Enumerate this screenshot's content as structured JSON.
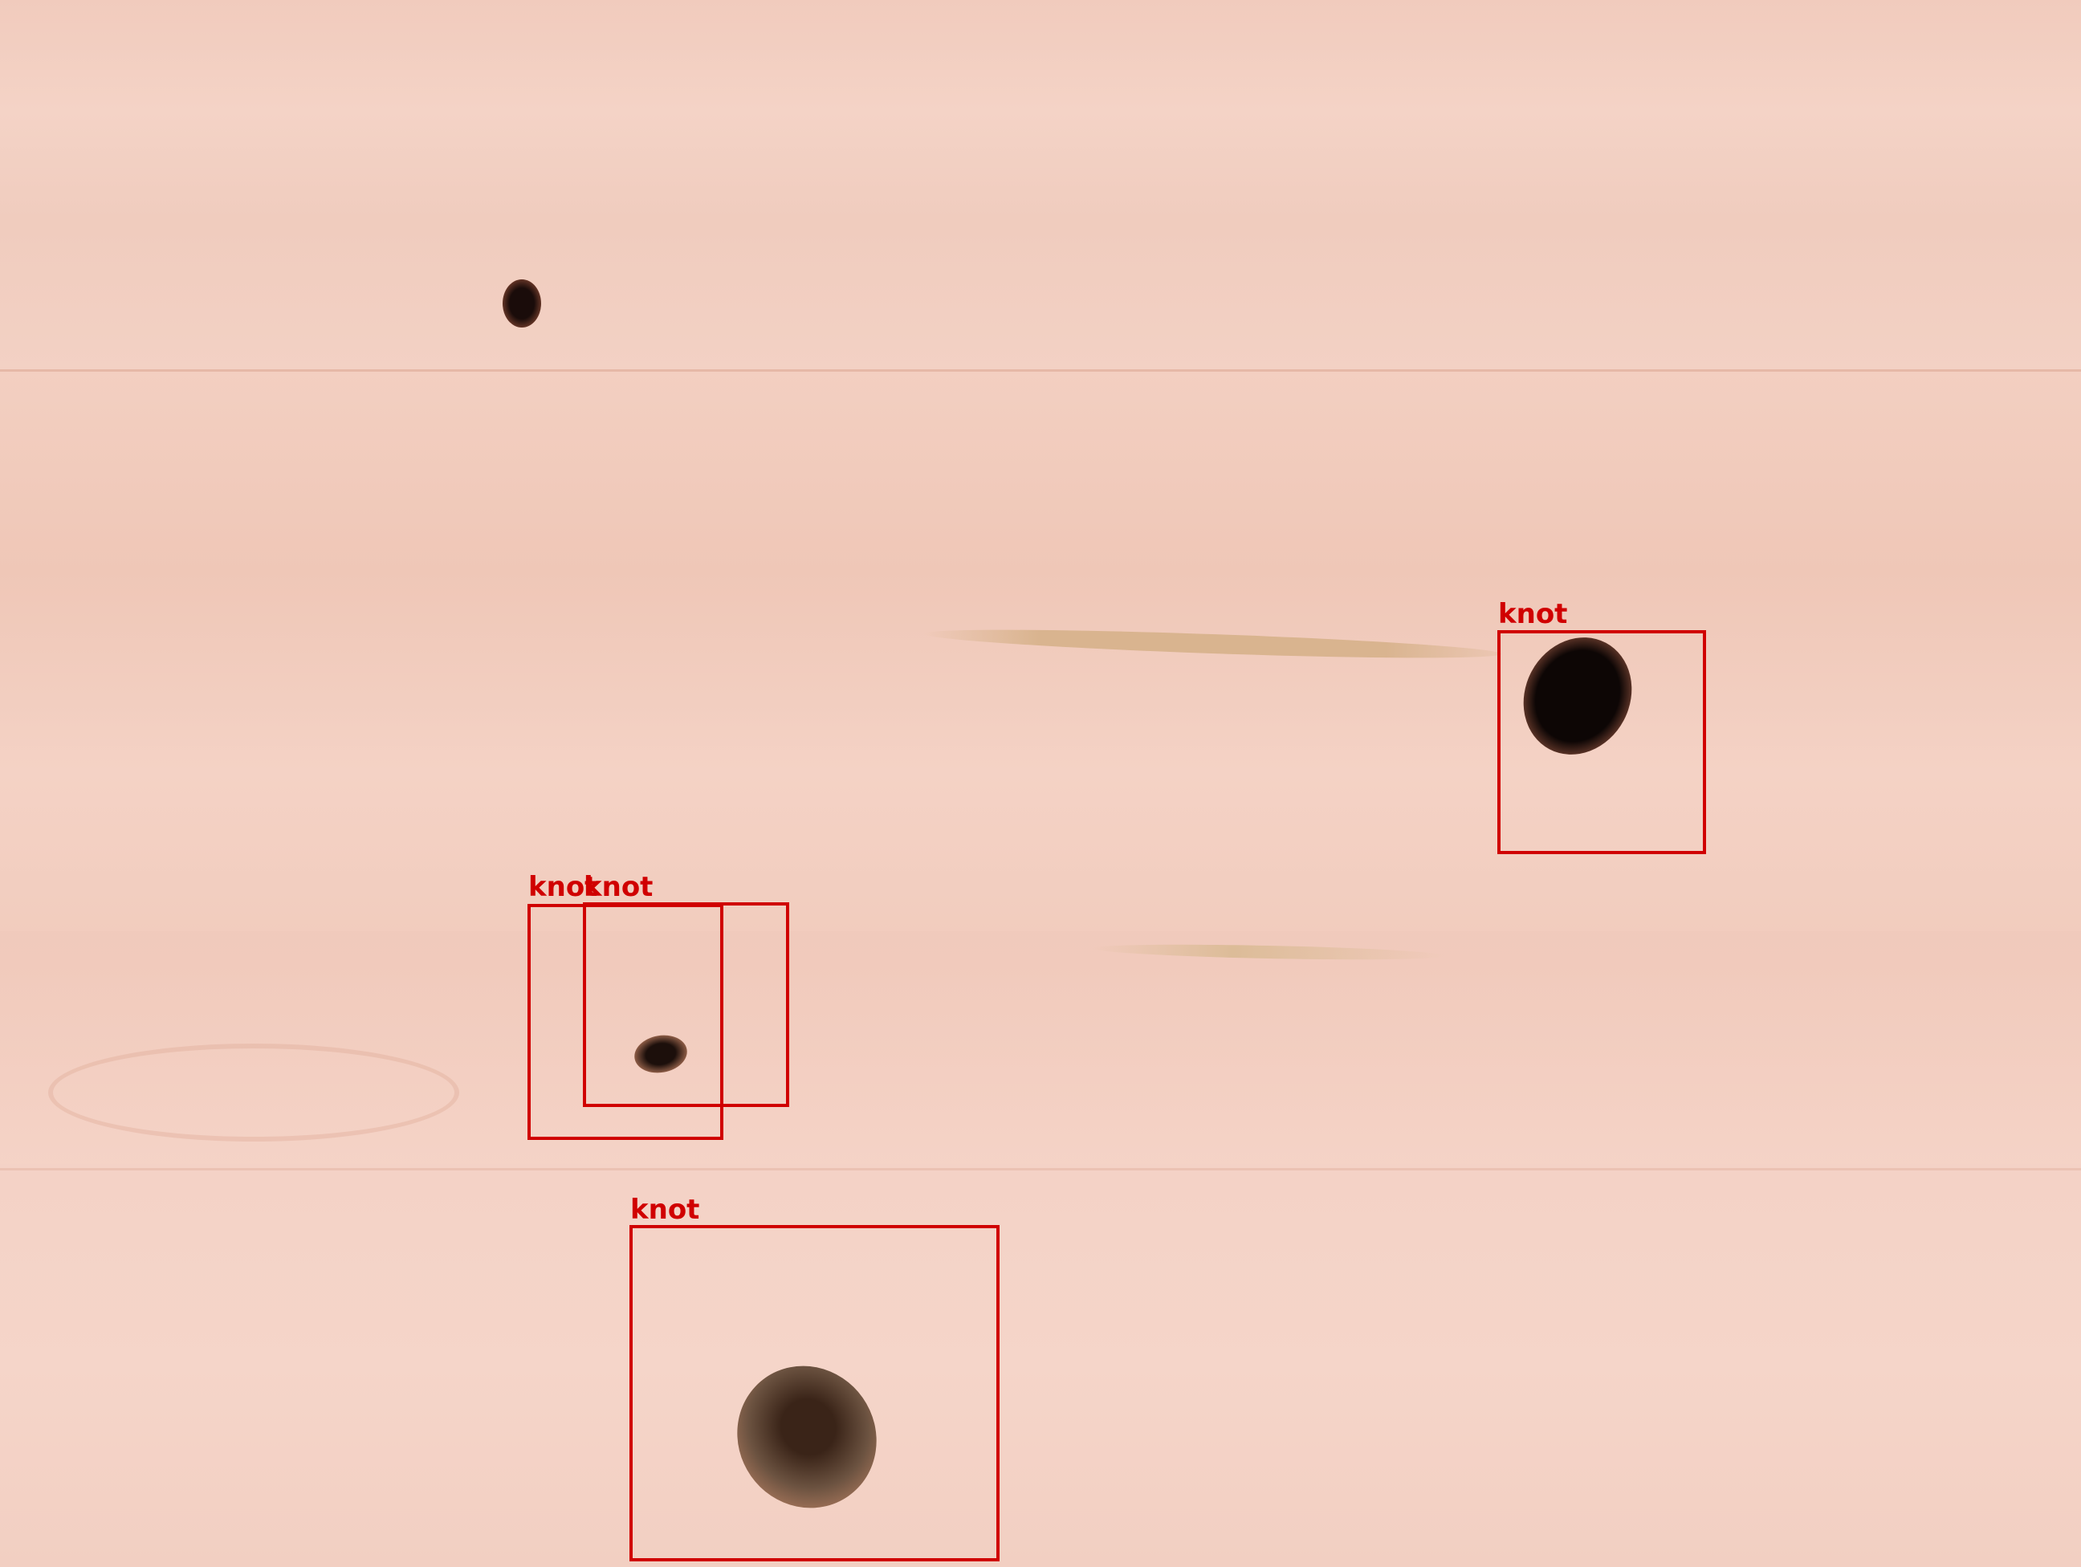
{
  "image": {
    "subject": "wood-surface-with-knots",
    "colors": {
      "wood_light": "#f4d3c6",
      "wood_mid": "#efc6b6",
      "wood_grain": "#e8b9a7",
      "knot_dark": "#1a0c0a",
      "knot_brown": "#6b5240",
      "crack": "#d9b48f",
      "box": "#d00000"
    }
  },
  "detections": [
    {
      "label": "knot"
    },
    {
      "label": "knot"
    },
    {
      "label": "knot"
    },
    {
      "label": "knot"
    }
  ]
}
